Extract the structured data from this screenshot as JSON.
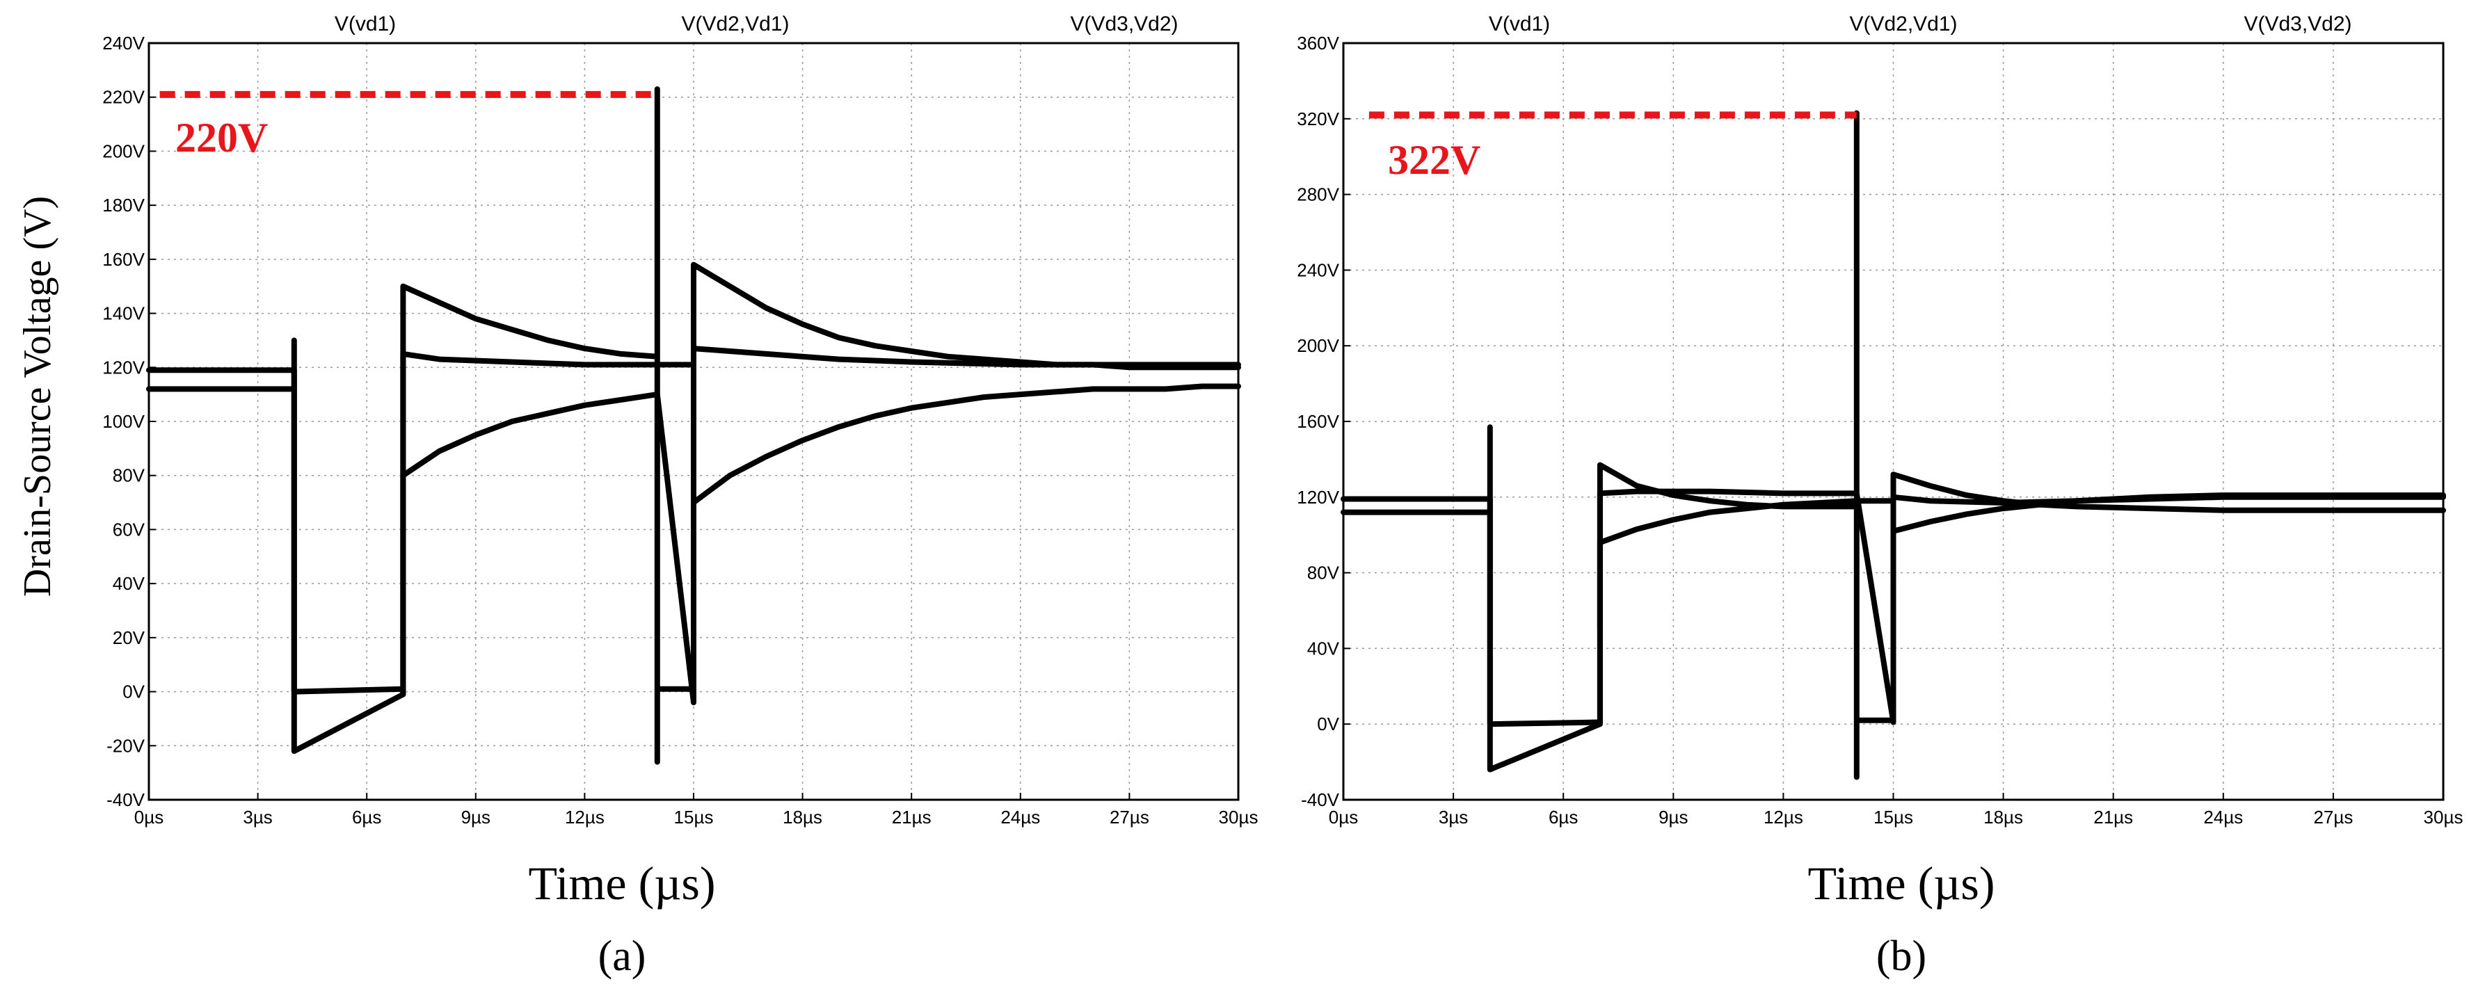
{
  "figure": {
    "ylabel": "Drain-Source Voltage (V)",
    "xlabel": "Time (µs)"
  },
  "chart_data": [
    {
      "type": "line",
      "caption": "(a)",
      "annotation": "220V",
      "peak_value": 221,
      "peak_x_range": [
        0.3,
        14
      ],
      "xlim": [
        0,
        30
      ],
      "ylim": [
        -40,
        240
      ],
      "xticks": [
        0,
        3,
        6,
        9,
        12,
        15,
        18,
        21,
        24,
        27,
        30
      ],
      "yticks": [
        -40,
        -20,
        0,
        20,
        40,
        60,
        80,
        100,
        120,
        140,
        160,
        180,
        200,
        220,
        240
      ],
      "xtick_labels": [
        "0µs",
        "3µs",
        "6µs",
        "9µs",
        "12µs",
        "15µs",
        "18µs",
        "21µs",
        "24µs",
        "27µs",
        "30µs"
      ],
      "ytick_labels": [
        "-40V",
        "-20V",
        "0V",
        "20V",
        "40V",
        "60V",
        "80V",
        "100V",
        "120V",
        "140V",
        "160V",
        "180V",
        "200V",
        "220V",
        "240V"
      ],
      "grid": true,
      "legend": [
        "V(vd1)",
        "V(Vd2,Vd1)",
        "V(Vd3,Vd2)"
      ],
      "series": [
        {
          "name": "V(vd1)",
          "x": [
            0,
            4,
            4,
            4,
            7,
            7,
            8,
            9,
            10,
            11,
            12,
            13,
            14,
            14,
            14,
            14,
            15,
            15,
            16,
            17,
            18,
            19,
            20,
            21,
            22,
            23,
            24,
            25,
            26,
            27,
            28,
            29,
            30
          ],
          "y": [
            112,
            112,
            130,
            0,
            1,
            150,
            144,
            138,
            134,
            130,
            127,
            125,
            124,
            223,
            -26,
            1,
            1,
            158,
            150,
            142,
            136,
            131,
            128,
            126,
            124,
            123,
            122,
            121,
            121,
            120,
            120,
            120,
            120
          ]
        },
        {
          "name": "V(Vd2,Vd1)",
          "x": [
            0,
            4,
            4,
            7,
            7,
            8,
            10,
            12,
            14,
            15,
            15,
            17,
            19,
            21,
            24,
            27,
            30
          ],
          "y": [
            119,
            119,
            -22,
            -1,
            125,
            123,
            122,
            121,
            121,
            121,
            127,
            125,
            123,
            122,
            121,
            121,
            121
          ]
        },
        {
          "name": "V(Vd3,Vd2)",
          "x": [
            7,
            7,
            8,
            9,
            10,
            11,
            12,
            13,
            14,
            15,
            15,
            16,
            17,
            18,
            19,
            20,
            21,
            22,
            23,
            24,
            25,
            26,
            27,
            28,
            29,
            30
          ],
          "y": [
            -1,
            80,
            89,
            95,
            100,
            103,
            106,
            108,
            110,
            -4,
            70,
            80,
            87,
            93,
            98,
            102,
            105,
            107,
            109,
            110,
            111,
            112,
            112,
            112,
            113,
            113
          ]
        }
      ]
    },
    {
      "type": "line",
      "caption": "(b)",
      "annotation": "322V",
      "peak_value": 322,
      "peak_x_range": [
        0.7,
        14
      ],
      "xlim": [
        0,
        30
      ],
      "ylim": [
        -40,
        360
      ],
      "xticks": [
        0,
        3,
        6,
        9,
        12,
        15,
        18,
        21,
        24,
        27,
        30
      ],
      "yticks": [
        -40,
        0,
        40,
        80,
        120,
        160,
        200,
        240,
        280,
        320,
        360
      ],
      "xtick_labels": [
        "0µs",
        "3µs",
        "6µs",
        "9µs",
        "12µs",
        "15µs",
        "18µs",
        "21µs",
        "24µs",
        "27µs",
        "30µs"
      ],
      "ytick_labels": [
        "-40V",
        "0V",
        "40V",
        "80V",
        "120V",
        "160V",
        "200V",
        "240V",
        "280V",
        "320V",
        "360V"
      ],
      "grid": true,
      "legend": [
        "V(vd1)",
        "V(Vd2,Vd1)",
        "V(Vd3,Vd2)"
      ],
      "series": [
        {
          "name": "V(vd1)",
          "x": [
            0,
            4,
            4,
            4,
            7,
            7,
            8,
            9,
            10,
            11,
            12,
            13,
            14,
            14,
            14,
            14,
            15,
            15,
            16,
            17,
            18,
            19,
            20,
            22,
            24,
            27,
            30
          ],
          "y": [
            112,
            112,
            157,
            0,
            1,
            137,
            126,
            121,
            118,
            116,
            115,
            115,
            115,
            323,
            -28,
            2,
            2,
            132,
            126,
            121,
            118,
            116,
            115,
            114,
            113,
            113,
            113
          ]
        },
        {
          "name": "V(Vd2,Vd1)",
          "x": [
            0,
            4,
            4,
            7,
            7,
            8,
            10,
            12,
            14,
            15,
            15,
            16,
            18,
            20,
            22,
            24,
            27,
            30
          ],
          "y": [
            119,
            119,
            -24,
            0,
            122,
            123,
            123,
            122,
            122,
            1,
            120,
            118,
            117,
            118,
            119,
            120,
            120,
            120
          ]
        },
        {
          "name": "V(Vd3,Vd2)",
          "x": [
            7,
            7,
            8,
            9,
            10,
            11,
            12,
            13,
            14,
            15,
            15,
            16,
            17,
            18,
            19,
            20,
            22,
            24,
            27,
            30
          ],
          "y": [
            50,
            96,
            103,
            108,
            112,
            114,
            116,
            117,
            118,
            118,
            102,
            107,
            111,
            114,
            116,
            118,
            120,
            121,
            121,
            121
          ]
        }
      ]
    }
  ]
}
